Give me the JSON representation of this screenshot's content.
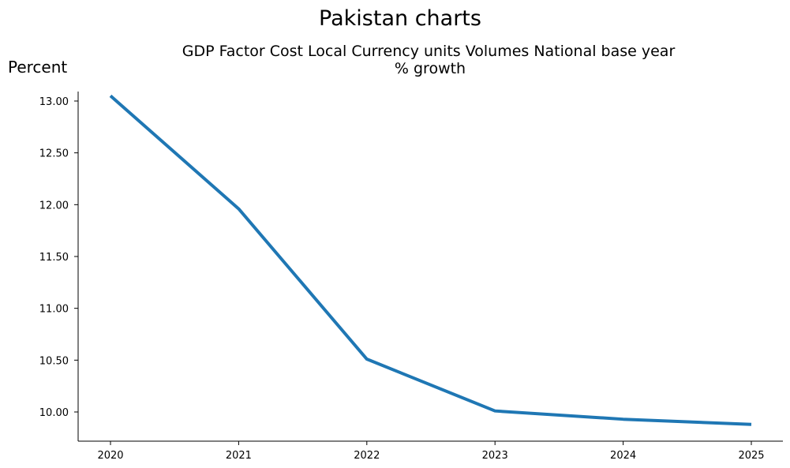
{
  "figure_title": "Pakistan charts",
  "chart_data": {
    "type": "line",
    "title_line1": "GDP Factor Cost Local Currency units Volumes National base year",
    "title_line2": "% growth",
    "ylabel": "Percent",
    "xlabel": "",
    "x": [
      "2020",
      "2021",
      "2022",
      "2023",
      "2024",
      "2025"
    ],
    "series": [
      {
        "values": [
          13.05,
          11.96,
          10.51,
          10.01,
          9.93,
          9.88
        ],
        "color": "#1f77b4"
      }
    ],
    "yticks": [
      "10.00",
      "10.50",
      "11.00",
      "11.50",
      "12.00",
      "12.50",
      "13.00"
    ],
    "ylim": [
      9.72,
      13.2
    ],
    "grid": false,
    "legend": "none"
  }
}
